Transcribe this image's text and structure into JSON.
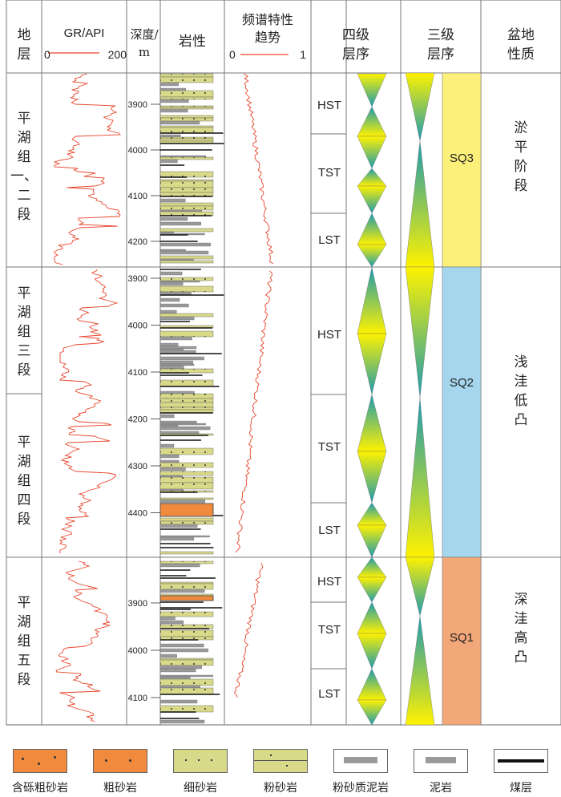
{
  "headers": {
    "stratum": "地\n层",
    "gr": "GR/API",
    "gr_min": "0",
    "gr_max": "200",
    "depth": "深度/\nm",
    "lith": "岩性",
    "spec": "频谱特性\n趋势",
    "spec_min": "0",
    "spec_max": "1",
    "fourth": "四级\n层序",
    "third": "三级\n层序",
    "basin": "盆地\n性质"
  },
  "strata": [
    {
      "label": "平\n湖\n组\n一、\n二\n段"
    },
    {
      "label": "平\n湖\n组\n三\n段"
    },
    {
      "label": "平\n湖\n组\n四\n段"
    },
    {
      "label": "平\n湖\n组\n五\n段"
    }
  ],
  "depth_ticks": {
    "section1": [
      "3900",
      "4000",
      "4100",
      "4200"
    ],
    "section2": [
      "3900",
      "4000",
      "4100",
      "4200",
      "4300",
      "4400"
    ],
    "section3": [
      "3900",
      "4000",
      "4100"
    ]
  },
  "systems_tracts": [
    {
      "label": "HST"
    },
    {
      "label": "TST"
    },
    {
      "label": "LST"
    },
    {
      "label": "HST"
    },
    {
      "label": "TST"
    },
    {
      "label": "LST"
    },
    {
      "label": "HST"
    },
    {
      "label": "TST"
    },
    {
      "label": "LST"
    }
  ],
  "sequences": [
    {
      "label": "SQ3",
      "color": "#fdf07a"
    },
    {
      "label": "SQ2",
      "color": "#a6d6ee"
    },
    {
      "label": "SQ1",
      "color": "#f3a87a"
    }
  ],
  "basin_nature": [
    {
      "label": "淤\n平\n阶\n段"
    },
    {
      "label": "浅\n洼\n低\n凸"
    },
    {
      "label": "深\n洼\n高\n凸"
    }
  ],
  "legend": [
    {
      "label": "含砾粗砂岩",
      "icon": "pebbly-coarse-sandstone"
    },
    {
      "label": "粗砂岩",
      "icon": "coarse-sandstone"
    },
    {
      "label": "细砂岩",
      "icon": "fine-sandstone"
    },
    {
      "label": "粉砂岩",
      "icon": "siltstone"
    },
    {
      "label": "粉砂质泥岩",
      "icon": "silty-mudstone"
    },
    {
      "label": "泥岩",
      "icon": "mudstone"
    },
    {
      "label": "煤层",
      "icon": "coal-seam"
    }
  ],
  "colors": {
    "gr_curve": "#e8442a",
    "spec_curve": "#e8442a",
    "sandstone_fill": "#d9d98a",
    "coarse_fill": "#f08a3c",
    "mudstone_fill": "#9a9a9a",
    "coal": "#111111",
    "grad_yellow": "#fff200",
    "grad_teal": "#1a9bb0"
  }
}
